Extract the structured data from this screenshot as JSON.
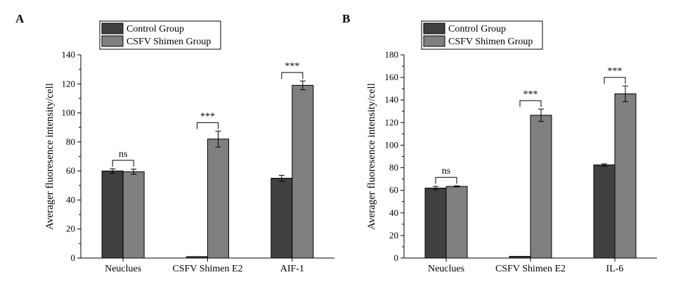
{
  "chart_data": [
    {
      "panel_label": "A",
      "type": "bar",
      "categories": [
        "Neuclues",
        "CSFV Shimen E2",
        "AIF-1"
      ],
      "series": [
        {
          "name": "Control Group",
          "color": "#404040",
          "values": [
            60,
            1,
            55
          ],
          "errors": [
            1.5,
            0,
            2
          ]
        },
        {
          "name": "CSFV Shimen Group",
          "color": "#808080",
          "values": [
            59.5,
            82,
            119
          ],
          "errors": [
            1.8,
            5.5,
            3
          ]
        }
      ],
      "ylabel": "Averager fluoresence intensity/cell",
      "xlabel": "",
      "ylim": [
        0,
        140
      ],
      "yticks": [
        0,
        20,
        40,
        60,
        80,
        100,
        120,
        140
      ],
      "significance": [
        "ns",
        "***",
        "***"
      ],
      "legend_position": "top-left",
      "grid": false
    },
    {
      "panel_label": "B",
      "type": "bar",
      "categories": [
        "Neuclues",
        "CSFV Shimen E2",
        "IL-6"
      ],
      "series": [
        {
          "name": "Control Group",
          "color": "#404040",
          "values": [
            62,
            1.5,
            82.5
          ],
          "errors": [
            1.5,
            0,
            1
          ]
        },
        {
          "name": "CSFV Shimen Group",
          "color": "#808080",
          "values": [
            63.5,
            126.5,
            145.5
          ],
          "errors": [
            0.5,
            5.5,
            7
          ]
        }
      ],
      "ylabel": "Averager fluoresence intensity/cell",
      "xlabel": "",
      "ylim": [
        0,
        180
      ],
      "yticks": [
        0,
        20,
        40,
        60,
        80,
        100,
        120,
        140,
        160,
        180
      ],
      "significance": [
        "ns",
        "***",
        "***"
      ],
      "legend_position": "top-left",
      "grid": false
    }
  ]
}
